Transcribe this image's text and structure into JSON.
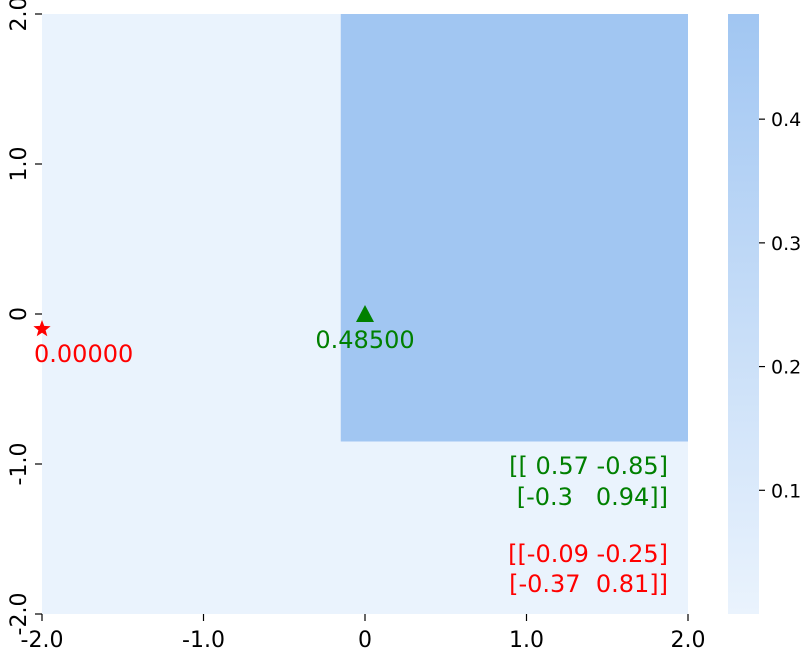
{
  "chart_data": {
    "type": "heatmap",
    "x_range": [
      -2.0,
      2.0
    ],
    "y_range": [
      -2.0,
      2.0
    ],
    "x_ticks": [
      {
        "value": -2.0,
        "label": "-2.0"
      },
      {
        "value": -1.0,
        "label": "-1.0"
      },
      {
        "value": 0.0,
        "label": "0"
      },
      {
        "value": 1.0,
        "label": "1.0"
      },
      {
        "value": 2.0,
        "label": "2.0"
      }
    ],
    "y_ticks": [
      {
        "value": -2.0,
        "label": "-2.0"
      },
      {
        "value": -1.0,
        "label": "-1.0"
      },
      {
        "value": 0.0,
        "label": "0"
      },
      {
        "value": 1.0,
        "label": "1.0"
      },
      {
        "value": 2.0,
        "label": "2.0"
      }
    ],
    "regions": [
      {
        "x": [
          -2.0,
          2.0
        ],
        "y": [
          -2.0,
          2.0
        ],
        "value": 0.0
      },
      {
        "x": [
          -0.15,
          2.0
        ],
        "y": [
          -0.85,
          2.0
        ],
        "value": 0.485
      }
    ],
    "colorbar": {
      "range": [
        0.0,
        0.485
      ],
      "ticks": [
        {
          "value": 0.1,
          "label": "0.1"
        },
        {
          "value": 0.2,
          "label": "0.2"
        },
        {
          "value": 0.3,
          "label": "0.3"
        },
        {
          "value": 0.4,
          "label": "0.4"
        }
      ],
      "color_low": "#eaf3fd",
      "color_high": "#a1c6f2"
    },
    "markers": [
      {
        "name": "star",
        "x": -2.0,
        "y": -0.1,
        "color": "#ff0000",
        "label": "0.00000"
      },
      {
        "name": "triangle",
        "x": 0.0,
        "y": 0.0,
        "color": "#008000",
        "label": "0.48500"
      }
    ],
    "matrices": [
      {
        "color": "#008000",
        "lines": [
          "[[ 0.57 -0.85]",
          " [-0.3   0.94]]"
        ]
      },
      {
        "color": "#ff0000",
        "lines": [
          "[[-0.09 -0.25]",
          " [-0.37  0.81]]"
        ]
      }
    ],
    "grid": false
  }
}
